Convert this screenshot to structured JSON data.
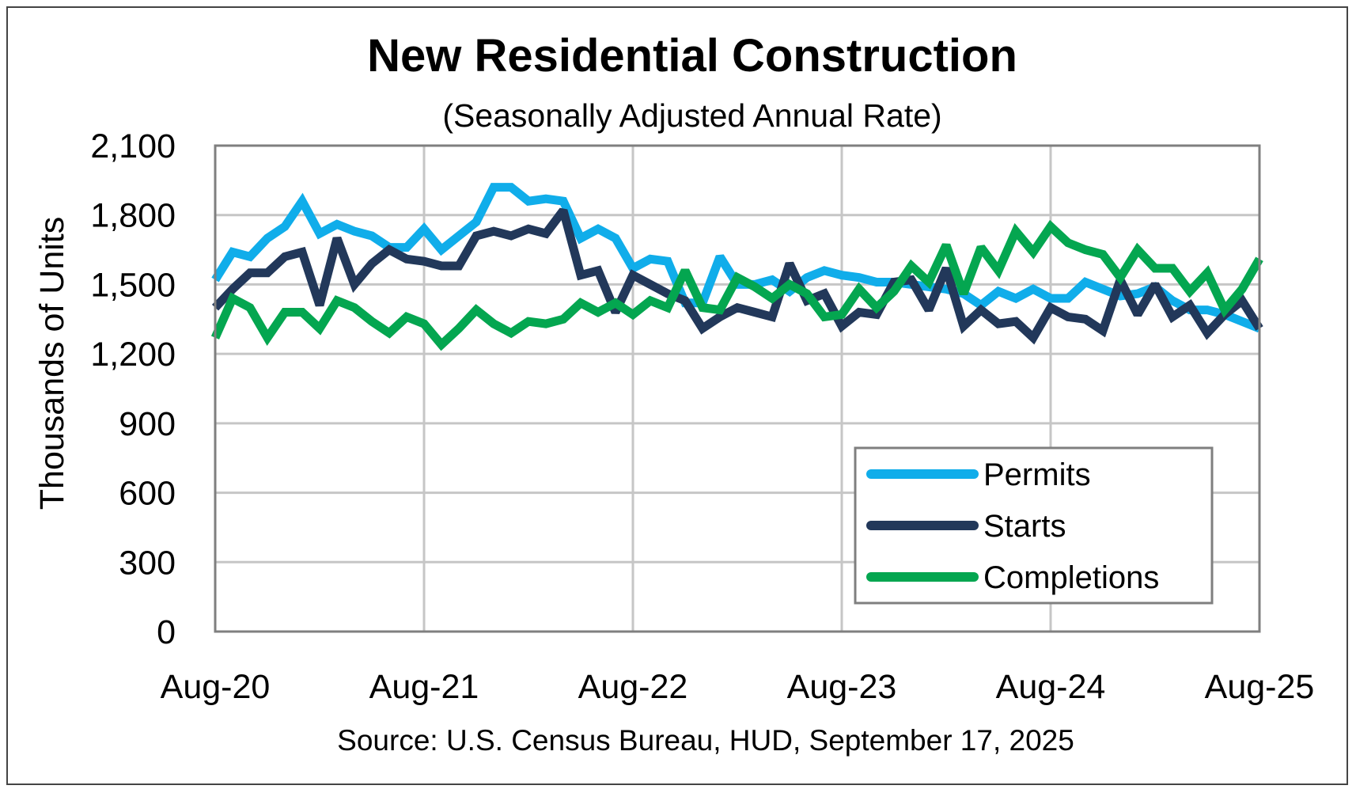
{
  "chart_data": {
    "type": "line",
    "title": "New Residential Construction",
    "subtitle": "(Seasonally Adjusted Annual Rate)",
    "xlabel": "",
    "ylabel": "Thousands of Units",
    "source": "Source:  U.S. Census Bureau, HUD, September 17, 2025",
    "ylim": [
      0,
      2100
    ],
    "yticks": [
      0,
      300,
      600,
      900,
      1200,
      1500,
      1800,
      2100
    ],
    "ytick_labels": [
      "0",
      "300",
      "600",
      "900",
      "1,200",
      "1,500",
      "1,800",
      "2,100"
    ],
    "xlim": [
      0,
      60
    ],
    "xticks": [
      0,
      12,
      24,
      36,
      48,
      60
    ],
    "xtick_labels": [
      "Aug-20",
      "Aug-21",
      "Aug-22",
      "Aug-23",
      "Aug-24",
      "Aug-25"
    ],
    "grid": true,
    "legend_position": "bottom-right",
    "series": [
      {
        "name": "Permits",
        "color": "#10ADEA",
        "values": [
          1520,
          1640,
          1620,
          1700,
          1750,
          1860,
          1720,
          1760,
          1730,
          1710,
          1660,
          1660,
          1740,
          1650,
          1710,
          1770,
          1920,
          1920,
          1860,
          1870,
          1860,
          1700,
          1740,
          1700,
          1570,
          1610,
          1600,
          1420,
          1420,
          1620,
          1500,
          1500,
          1520,
          1470,
          1530,
          1560,
          1540,
          1530,
          1510,
          1510,
          1500,
          1490,
          1480,
          1460,
          1410,
          1470,
          1440,
          1480,
          1440,
          1440,
          1510,
          1480,
          1450,
          1460,
          1490,
          1430,
          1390,
          1390,
          1370,
          1340,
          1310
        ]
      },
      {
        "name": "Starts",
        "color": "#22385A",
        "values": [
          1400,
          1480,
          1550,
          1550,
          1620,
          1640,
          1410,
          1700,
          1500,
          1590,
          1650,
          1610,
          1600,
          1580,
          1580,
          1710,
          1730,
          1710,
          1740,
          1720,
          1820,
          1540,
          1560,
          1380,
          1540,
          1500,
          1460,
          1430,
          1310,
          1360,
          1400,
          1380,
          1360,
          1590,
          1430,
          1460,
          1320,
          1380,
          1370,
          1510,
          1520,
          1390,
          1570,
          1320,
          1390,
          1330,
          1340,
          1270,
          1400,
          1360,
          1350,
          1300,
          1520,
          1370,
          1500,
          1360,
          1410,
          1290,
          1370,
          1430,
          1310
        ]
      },
      {
        "name": "Completions",
        "color": "#04A650",
        "values": [
          1270,
          1440,
          1400,
          1270,
          1380,
          1380,
          1310,
          1430,
          1400,
          1340,
          1290,
          1360,
          1330,
          1240,
          1310,
          1390,
          1330,
          1290,
          1340,
          1330,
          1350,
          1420,
          1380,
          1420,
          1370,
          1430,
          1400,
          1560,
          1400,
          1390,
          1530,
          1490,
          1440,
          1500,
          1460,
          1360,
          1370,
          1480,
          1400,
          1470,
          1580,
          1510,
          1670,
          1460,
          1660,
          1560,
          1730,
          1640,
          1750,
          1680,
          1650,
          1630,
          1530,
          1650,
          1570,
          1570,
          1470,
          1550,
          1390,
          1480,
          1610
        ]
      }
    ]
  }
}
